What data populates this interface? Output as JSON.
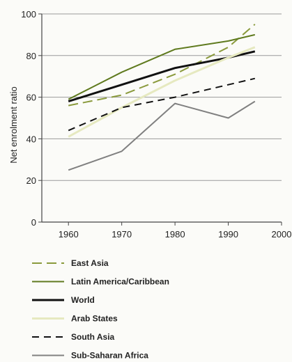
{
  "chart_data": {
    "type": "line",
    "title": "",
    "xlabel": "",
    "ylabel": "Net enrolment ratio",
    "xlim": [
      1955,
      2000
    ],
    "ylim": [
      0,
      100
    ],
    "xticks": [
      1960,
      1970,
      1980,
      1990,
      2000
    ],
    "yticks": [
      0,
      20,
      40,
      60,
      80,
      100
    ],
    "grid": "horizontal",
    "legend_position": "bottom",
    "series": [
      {
        "name": "East Asia",
        "color": "#8a9a3c",
        "dash": "long-dash",
        "width": 2,
        "x": [
          1960,
          1970,
          1980,
          1990,
          1995
        ],
        "y": [
          56,
          61,
          71,
          84,
          95
        ]
      },
      {
        "name": "Latin America/Caribbean",
        "color": "#5f7a1e",
        "dash": "solid",
        "width": 2,
        "x": [
          1960,
          1970,
          1980,
          1990,
          1995
        ],
        "y": [
          59,
          72,
          83,
          87,
          90
        ]
      },
      {
        "name": "World",
        "color": "#111111",
        "dash": "solid",
        "width": 3,
        "x": [
          1960,
          1970,
          1980,
          1990,
          1995
        ],
        "y": [
          58,
          66,
          74,
          79,
          82
        ]
      },
      {
        "name": "Arab States",
        "color": "#e6e9c0",
        "dash": "solid",
        "width": 3,
        "x": [
          1960,
          1970,
          1980,
          1990,
          1995
        ],
        "y": [
          41,
          55,
          68,
          79,
          84
        ]
      },
      {
        "name": "South Asia",
        "color": "#111111",
        "dash": "dash",
        "width": 2,
        "x": [
          1960,
          1970,
          1980,
          1990,
          1995
        ],
        "y": [
          44,
          55,
          60,
          66,
          69
        ]
      },
      {
        "name": "Sub-Saharan Africa",
        "color": "#808080",
        "dash": "solid",
        "width": 2,
        "x": [
          1960,
          1970,
          1980,
          1990,
          1995
        ],
        "y": [
          25,
          34,
          57,
          50,
          58
        ]
      }
    ]
  }
}
